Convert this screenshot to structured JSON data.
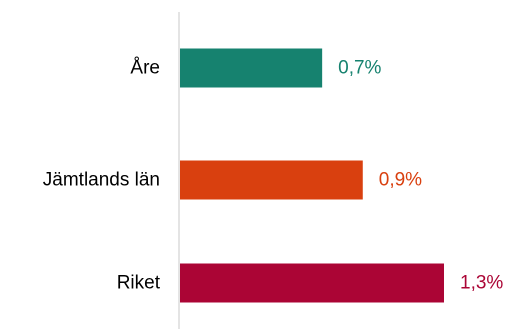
{
  "chart_data": {
    "type": "bar",
    "orientation": "horizontal",
    "categories": [
      "Åre",
      "Jämtlands län",
      "Riket"
    ],
    "values": [
      0.7,
      0.9,
      1.3
    ],
    "value_labels": [
      "0,7%",
      "0,9%",
      "1,3%"
    ],
    "colors": [
      "#16826f",
      "#d9400f",
      "#ab0535"
    ],
    "xlim": [
      0,
      1.3
    ],
    "title": "",
    "xlabel": "",
    "ylabel": "",
    "grid": false,
    "legend": "none"
  }
}
